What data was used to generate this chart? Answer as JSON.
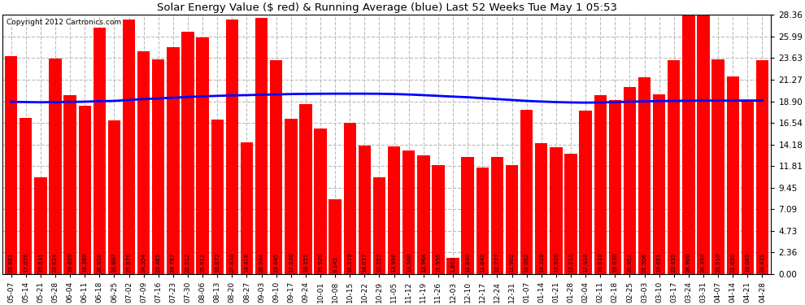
{
  "title": "Solar Energy Value ($ red) & Running Average (blue) Last 52 Weeks Tue May 1 05:53",
  "copyright": "Copyright 2012 Cartronics.com",
  "bar_color": "#FF0000",
  "avg_line_color": "#0000FF",
  "background_color": "#FFFFFF",
  "grid_color": "#BBBBBB",
  "ylabel_right": [
    "0.00",
    "2.36",
    "4.73",
    "7.09",
    "9.45",
    "11.81",
    "14.18",
    "16.54",
    "18.90",
    "21.27",
    "23.63",
    "25.99",
    "28.36"
  ],
  "ylim": [
    0,
    28.36
  ],
  "categories": [
    "05-07",
    "05-14",
    "05-21",
    "05-28",
    "06-04",
    "06-11",
    "06-18",
    "06-25",
    "07-02",
    "07-09",
    "07-16",
    "07-23",
    "07-30",
    "08-06",
    "08-13",
    "08-20",
    "08-27",
    "09-03",
    "09-10",
    "09-17",
    "09-24",
    "10-01",
    "10-08",
    "10-15",
    "10-22",
    "10-29",
    "11-05",
    "11-12",
    "11-19",
    "11-26",
    "12-03",
    "12-10",
    "12-17",
    "12-24",
    "12-31",
    "01-07",
    "01-14",
    "01-21",
    "01-28",
    "02-04",
    "02-11",
    "02-18",
    "02-25",
    "03-03",
    "03-10",
    "03-17",
    "03-24",
    "03-31",
    "04-07",
    "04-14",
    "04-21",
    "04-28"
  ],
  "values": [
    23.881,
    17.07,
    10.631,
    23.624,
    19.609,
    18.389,
    26.956,
    16.807,
    27.876,
    24.354,
    23.485,
    24.797,
    26.512,
    25.912,
    16.872,
    27.83,
    14.418,
    28.044,
    23.445,
    17.03,
    18.555,
    15.92,
    8.145,
    16.578,
    14.077,
    10.557,
    13.956,
    13.56,
    12.964,
    11.955,
    1.802,
    12.84,
    11.64,
    12.777,
    11.902,
    18.002,
    14.328,
    13.92,
    13.21,
    17.92,
    19.61,
    19.03,
    20.452,
    21.506,
    19.651,
    23.435,
    28.9,
    28.35,
    23.51,
    21.65,
    19.065,
    23.435
  ],
  "running_avg": [
    18.85,
    18.82,
    18.8,
    18.82,
    18.84,
    18.86,
    18.92,
    18.95,
    19.05,
    19.15,
    19.22,
    19.3,
    19.38,
    19.45,
    19.5,
    19.55,
    19.58,
    19.62,
    19.66,
    19.7,
    19.72,
    19.73,
    19.74,
    19.74,
    19.74,
    19.73,
    19.7,
    19.65,
    19.58,
    19.5,
    19.42,
    19.35,
    19.25,
    19.15,
    19.05,
    18.95,
    18.88,
    18.82,
    18.78,
    18.76,
    18.78,
    18.82,
    18.86,
    18.9,
    18.93,
    18.95,
    18.97,
    18.98,
    18.98,
    18.98,
    18.99,
    18.99
  ]
}
